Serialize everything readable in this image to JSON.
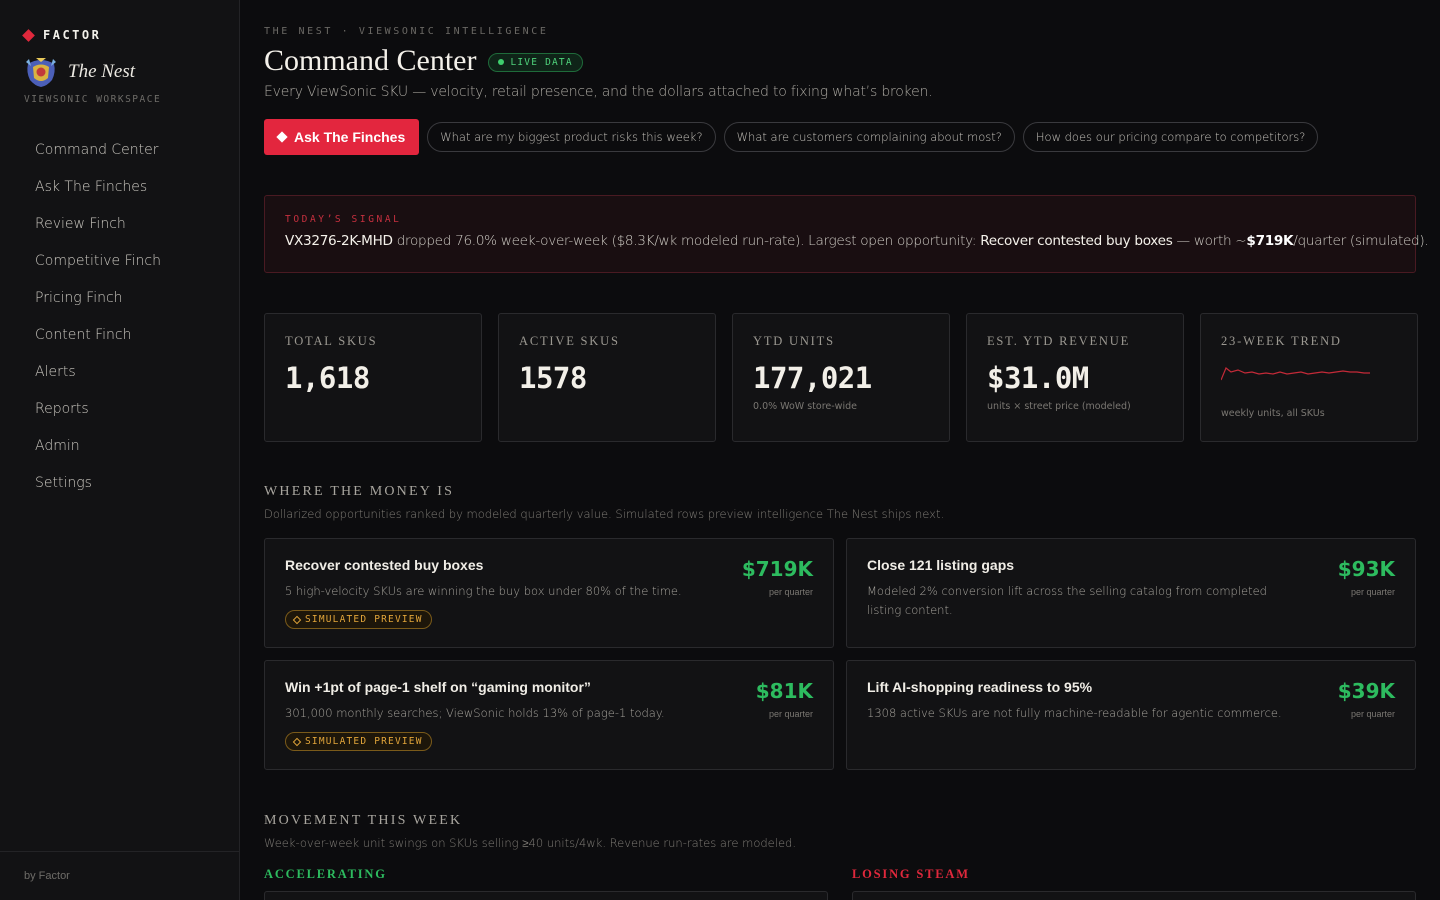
{
  "brand": {
    "name": "FACTOR",
    "product": "The Nest",
    "workspace": "VIEWSONIC WORKSPACE"
  },
  "sidebar": {
    "items": [
      {
        "label": "Command Center"
      },
      {
        "label": "Ask The Finches"
      },
      {
        "label": "Review Finch"
      },
      {
        "label": "Competitive Finch"
      },
      {
        "label": "Pricing Finch"
      },
      {
        "label": "Content Finch"
      },
      {
        "label": "Alerts"
      },
      {
        "label": "Reports"
      },
      {
        "label": "Admin"
      },
      {
        "label": "Settings"
      }
    ],
    "footer": "by Factor"
  },
  "header": {
    "eyebrow": "THE NEST · VIEWSONIC INTELLIGENCE",
    "title": "Command Center",
    "live_badge": "LIVE DATA",
    "subtitle": "Every ViewSonic SKU — velocity, retail presence, and the dollars attached to fixing what’s broken.",
    "ask_button": "Ask The Finches",
    "prompts": [
      "What are my biggest product risks this week?",
      "What are customers complaining about most?",
      "How does our pricing compare to competitors?"
    ]
  },
  "signal": {
    "label": "TODAY’S SIGNAL",
    "sku": "VX3276-2K-MHD",
    "text1": " dropped 76.0% week-over-week ($8.3K/wk modeled run-rate). Largest open opportunity: ",
    "opportunity": "Recover contested buy boxes",
    "text2": " — worth ~",
    "worth": "$719K",
    "text3": "/quarter (simulated)."
  },
  "stats": [
    {
      "label": "TOTAL SKUS",
      "value": "1,618",
      "note": ""
    },
    {
      "label": "ACTIVE SKUS",
      "value": "1578",
      "note": ""
    },
    {
      "label": "YTD UNITS",
      "value": "177,021",
      "note": "0.0% WoW store-wide"
    },
    {
      "label": "EST. YTD REVENUE",
      "value": "$31.0M",
      "note": "units × street price (modeled)"
    },
    {
      "label": "23-WEEK TREND",
      "note": "weekly units, all SKUs"
    }
  ],
  "trend_color": "#c42a38",
  "money": {
    "title": "WHERE THE MONEY IS",
    "subtitle": "Dollarized opportunities ranked by modeled quarterly value. Simulated rows preview intelligence The Nest ships next.",
    "per_label": "per quarter",
    "simulated_label": "SIMULATED PREVIEW",
    "items": [
      {
        "title": "Recover contested buy boxes",
        "desc": "5 high-velocity SKUs are winning the buy box under 80% of the time.",
        "amount": "$719K"
      },
      {
        "title": "Close 121 listing gaps",
        "desc": "Modeled 2% conversion lift across the selling catalog from completed listing content.",
        "amount": "$93K"
      },
      {
        "title": "Win +1pt of page-1 shelf on “gaming monitor”",
        "desc": "301,000 monthly searches; ViewSonic holds 13% of page-1 today.",
        "amount": "$81K"
      },
      {
        "title": "Lift AI-shopping readiness to 95%",
        "desc": "1308 active SKUs are not fully machine-readable for agentic commerce.",
        "amount": "$39K"
      }
    ]
  },
  "movement": {
    "title": "MOVEMENT THIS WEEK",
    "subtitle": "Week-over-week unit swings on SKUs selling ≥40 units/4wk. Revenue run-rates are modeled.",
    "accelerating": "ACCELERATING",
    "losing": "LOSING STEAM"
  },
  "colors": {
    "accent": "#e3263e",
    "positive": "#2dbb5f",
    "warning": "#e2a53a",
    "live": "#4fd37c"
  }
}
